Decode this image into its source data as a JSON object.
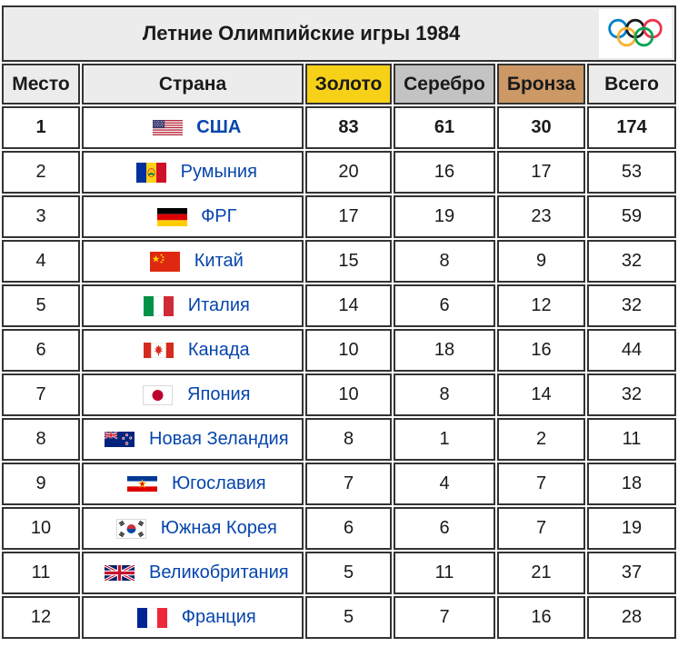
{
  "header": {
    "title": "Летние Олимпийские игры 1984",
    "icon": "olympic-rings-icon"
  },
  "colors": {
    "gold": "#F7D117",
    "silver": "#C3C3C3",
    "bronze": "#CC9966",
    "header_bg": "#ECECEC",
    "link": "#0645AD",
    "border": "#333333",
    "text": "#1A1A1A"
  },
  "table": {
    "columns": {
      "place": "Место",
      "country": "Страна",
      "gold": "Золото",
      "silver": "Серебро",
      "bronze": "Бронза",
      "total": "Всего"
    },
    "rows": [
      {
        "place": "1",
        "country": "США",
        "flag": "flag-usa",
        "gold": "83",
        "silver": "61",
        "bronze": "30",
        "total": "174",
        "bold": true
      },
      {
        "place": "2",
        "country": "Румыния",
        "flag": "flag-romania",
        "gold": "20",
        "silver": "16",
        "bronze": "17",
        "total": "53"
      },
      {
        "place": "3",
        "country": "ФРГ",
        "flag": "flag-west-germany",
        "gold": "17",
        "silver": "19",
        "bronze": "23",
        "total": "59"
      },
      {
        "place": "4",
        "country": "Китай",
        "flag": "flag-china",
        "gold": "15",
        "silver": "8",
        "bronze": "9",
        "total": "32"
      },
      {
        "place": "5",
        "country": "Италия",
        "flag": "flag-italy",
        "gold": "14",
        "silver": "6",
        "bronze": "12",
        "total": "32"
      },
      {
        "place": "6",
        "country": "Канада",
        "flag": "flag-canada",
        "gold": "10",
        "silver": "18",
        "bronze": "16",
        "total": "44"
      },
      {
        "place": "7",
        "country": "Япония",
        "flag": "flag-japan",
        "gold": "10",
        "silver": "8",
        "bronze": "14",
        "total": "32"
      },
      {
        "place": "8",
        "country": "Новая Зеландия",
        "flag": "flag-new-zealand",
        "gold": "8",
        "silver": "1",
        "bronze": "2",
        "total": "11"
      },
      {
        "place": "9",
        "country": "Югославия",
        "flag": "flag-yugoslavia",
        "gold": "7",
        "silver": "4",
        "bronze": "7",
        "total": "18"
      },
      {
        "place": "10",
        "country": "Южная Корея",
        "flag": "flag-south-korea",
        "gold": "6",
        "silver": "6",
        "bronze": "7",
        "total": "19"
      },
      {
        "place": "11",
        "country": "Великобритания",
        "flag": "flag-uk",
        "gold": "5",
        "silver": "11",
        "bronze": "21",
        "total": "37"
      },
      {
        "place": "12",
        "country": "Франция",
        "flag": "flag-france",
        "gold": "5",
        "silver": "7",
        "bronze": "16",
        "total": "28"
      }
    ]
  }
}
